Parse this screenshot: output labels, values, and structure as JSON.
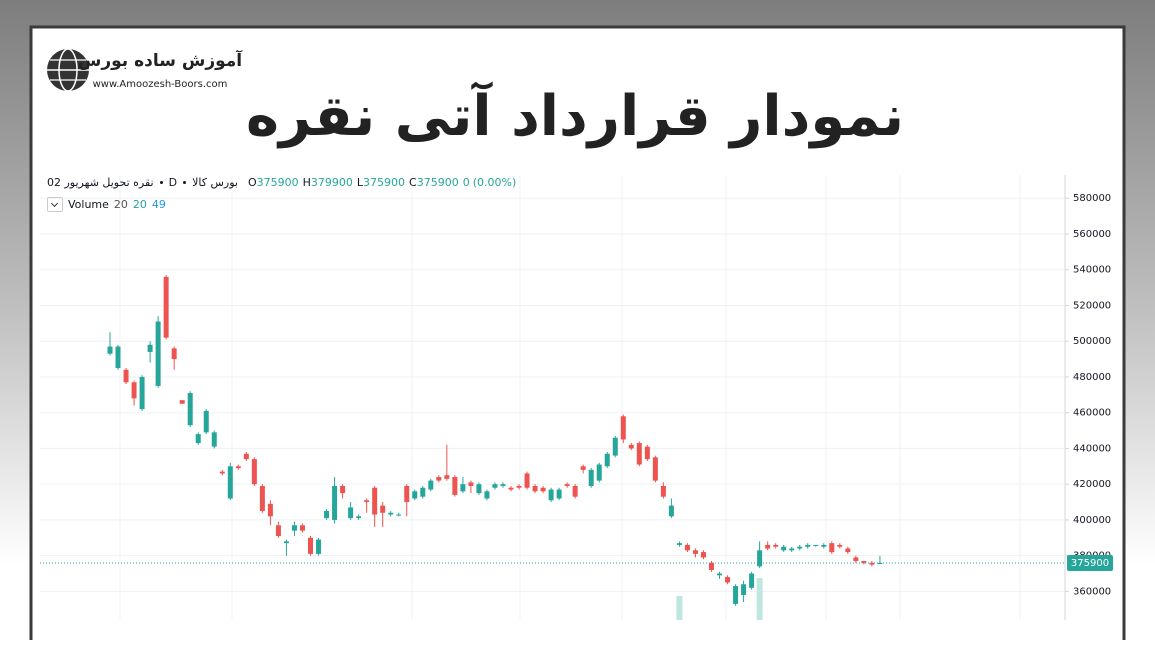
{
  "header": {
    "title": "نمودار قرارداد آتی نقره",
    "logo_name": "آموزش ساده بورس",
    "logo_url": "www.Amoozesh-Boors.com"
  },
  "chart_data": {
    "type": "candlestick",
    "symbol": "نقره تحویل شهریور 02",
    "interval": "D",
    "exchange": "بورس کالا",
    "ohlc_legend": [
      {
        "label": "O",
        "value": 375900
      },
      {
        "label": "H",
        "value": 379900
      },
      {
        "label": "L",
        "value": 375900
      },
      {
        "label": "C",
        "value": 375900
      }
    ],
    "change": 0,
    "change_percent": "(0.00%)",
    "volume_legend": {
      "label": "Volume",
      "values": [
        20,
        20,
        49
      ]
    },
    "up_color": "#26a69a",
    "down_color": "#ef5350",
    "volume_color": "#bfe6df",
    "open": [
      493000,
      485000,
      484000,
      477000,
      462000,
      494000,
      475000,
      536000,
      496000,
      467000,
      453000,
      443000,
      449000,
      441000,
      427000,
      412000,
      430000,
      437000,
      434000,
      419000,
      409000,
      397000,
      387000,
      394000,
      397000,
      390000,
      381000,
      401000,
      400000,
      419000,
      401000,
      401000,
      411000,
      418000,
      408000,
      403000,
      403000,
      419000,
      412000,
      413000,
      417000,
      424000,
      425000,
      424000,
      416000,
      421000,
      415000,
      412000,
      418000,
      419000,
      418000,
      419000,
      426000,
      419000,
      418000,
      411000,
      412000,
      420000,
      419000,
      430000,
      419000,
      422000,
      430000,
      436000,
      458000,
      442000,
      443000,
      441000,
      435000,
      419000,
      402000,
      386000,
      386000,
      383000,
      382000,
      376000,
      369000,
      368000,
      353000,
      358000,
      362000,
      374000,
      386000,
      386000,
      383000,
      383000,
      384000,
      385000,
      386000,
      385000,
      387000,
      386000,
      384000,
      379000,
      377000,
      376000,
      375900
    ],
    "high": [
      505000,
      498000,
      485000,
      478000,
      481000,
      500000,
      514000,
      537000,
      497000,
      467000,
      472000,
      449000,
      462000,
      450000,
      428000,
      432000,
      431000,
      438000,
      435000,
      420000,
      411000,
      399000,
      389000,
      399000,
      398000,
      391000,
      390000,
      406000,
      424000,
      420000,
      410000,
      403000,
      412000,
      419000,
      410000,
      405000,
      404000,
      420000,
      417000,
      419000,
      423000,
      425000,
      442000,
      425000,
      424000,
      422000,
      421000,
      417000,
      421000,
      421000,
      419000,
      420000,
      427000,
      420000,
      419000,
      418000,
      418000,
      421000,
      420000,
      431000,
      429000,
      432000,
      438000,
      447000,
      459000,
      443000,
      444000,
      442000,
      436000,
      421000,
      412000,
      388000,
      387000,
      384000,
      383000,
      377000,
      371000,
      369000,
      364000,
      366000,
      371000,
      388000,
      388000,
      387000,
      386000,
      385000,
      386000,
      387000,
      386000,
      387000,
      388000,
      387000,
      385000,
      380000,
      377000,
      377000,
      379900
    ],
    "low": [
      492000,
      484000,
      476000,
      464000,
      461000,
      488000,
      474000,
      501000,
      484000,
      465000,
      452000,
      442000,
      448000,
      440000,
      425000,
      411000,
      428000,
      433000,
      419000,
      404000,
      397000,
      390000,
      380000,
      391000,
      393000,
      380000,
      380000,
      400000,
      398000,
      412000,
      400000,
      400000,
      404000,
      396000,
      396000,
      402000,
      402000,
      402000,
      411000,
      412000,
      416000,
      421000,
      422000,
      413000,
      415000,
      415000,
      414000,
      411000,
      417000,
      418000,
      416000,
      417000,
      417000,
      415000,
      415000,
      410000,
      411000,
      418000,
      412000,
      426000,
      418000,
      421000,
      429000,
      435000,
      443000,
      439000,
      430000,
      433000,
      421000,
      412000,
      401000,
      385000,
      382000,
      379000,
      378000,
      371000,
      367000,
      364000,
      352000,
      354000,
      361000,
      373000,
      383000,
      384000,
      382000,
      382000,
      383000,
      384000,
      385000,
      384000,
      381000,
      384000,
      381000,
      376000,
      375000,
      374000,
      375900
    ],
    "close": [
      497000,
      497000,
      477000,
      468000,
      480000,
      498000,
      511000,
      502000,
      490000,
      465000,
      471000,
      448000,
      461000,
      449000,
      426000,
      430000,
      429000,
      434000,
      420000,
      405000,
      402000,
      391000,
      388000,
      397000,
      394000,
      381000,
      389000,
      405000,
      419000,
      415000,
      407000,
      402000,
      410000,
      403000,
      404000,
      404000,
      403000,
      410000,
      416000,
      418000,
      422000,
      422000,
      423000,
      414000,
      420000,
      419000,
      420000,
      416000,
      420000,
      420000,
      417000,
      418000,
      418000,
      416000,
      416000,
      417000,
      417000,
      419000,
      413000,
      428000,
      428000,
      431000,
      437000,
      446000,
      445000,
      440000,
      431000,
      434000,
      422000,
      413000,
      408000,
      387000,
      383000,
      381000,
      379000,
      372000,
      370000,
      365000,
      363000,
      364000,
      370000,
      383000,
      384000,
      385000,
      385000,
      384000,
      385000,
      386000,
      386000,
      386000,
      382000,
      385000,
      382000,
      377000,
      376000,
      375000,
      375900
    ],
    "volume": [
      null,
      null,
      null,
      null,
      null,
      null,
      null,
      null,
      null,
      null,
      null,
      null,
      null,
      null,
      null,
      null,
      null,
      null,
      null,
      null,
      null,
      null,
      null,
      null,
      null,
      null,
      null,
      null,
      null,
      null,
      null,
      null,
      null,
      null,
      null,
      null,
      null,
      null,
      null,
      null,
      null,
      null,
      null,
      null,
      null,
      null,
      null,
      null,
      null,
      null,
      null,
      null,
      null,
      null,
      null,
      null,
      null,
      null,
      null,
      null,
      null,
      null,
      null,
      null,
      null,
      null,
      null,
      null,
      null,
      null,
      null,
      24,
      null,
      null,
      null,
      null,
      null,
      null,
      null,
      null,
      null,
      42,
      null,
      null,
      null,
      null,
      null,
      null,
      null,
      null,
      null,
      null,
      null,
      null,
      null,
      null,
      null
    ],
    "volume_lim": [
      0,
      100
    ],
    "last_price": 375900,
    "ylim": [
      344000,
      593000
    ],
    "yticks": [
      360000,
      380000,
      400000,
      420000,
      440000,
      460000,
      480000,
      500000,
      520000,
      540000,
      560000,
      580000
    ],
    "grid": true
  }
}
